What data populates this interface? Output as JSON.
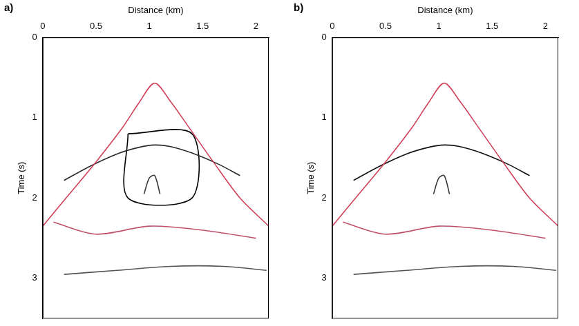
{
  "chart_data": [
    {
      "type": "line",
      "title": "a)",
      "x_label": "Distance (km)",
      "y_label": "Time (s)",
      "xlim": [
        0,
        2.12
      ],
      "xticks": [
        0,
        0.5,
        1,
        1.5,
        2
      ],
      "ylim": [
        0,
        3.5
      ],
      "yticks": [
        0,
        1,
        2,
        3
      ],
      "series": [
        {
          "color": "#d0405a",
          "x": [
            0,
            0.25,
            0.5,
            0.75,
            0.9,
            1.05,
            1.2,
            1.35,
            1.6,
            1.85,
            2.12
          ],
          "values": [
            2.35,
            1.95,
            1.55,
            1.12,
            0.82,
            0.57,
            0.8,
            1.08,
            1.55,
            2.0,
            2.35
          ]
        },
        {
          "color": "#2b2b2b",
          "x": [
            0.2,
            0.45,
            0.7,
            0.9,
            1.05,
            1.2,
            1.4,
            1.65,
            1.85
          ],
          "values": [
            1.78,
            1.6,
            1.45,
            1.37,
            1.34,
            1.36,
            1.44,
            1.58,
            1.72
          ]
        },
        {
          "color": "#3a3a3a",
          "x": [
            0.95,
            1.0,
            1.05,
            1.1
          ],
          "values": [
            1.95,
            1.75,
            1.72,
            1.95
          ]
        },
        {
          "color": "#c0506a",
          "x": [
            0.1,
            0.5,
            1.0,
            1.5,
            2.0
          ],
          "values": [
            2.3,
            2.45,
            2.35,
            2.4,
            2.5
          ]
        },
        {
          "color": "#555555",
          "x": [
            0.2,
            0.7,
            1.2,
            1.7,
            2.1
          ],
          "values": [
            2.95,
            2.9,
            2.85,
            2.85,
            2.9
          ]
        },
        {
          "color": "#000000",
          "x": [
            0.8,
            1.4,
            1.4,
            0.8,
            0.8
          ],
          "values": [
            1.2,
            1.2,
            2.0,
            2.0,
            1.2
          ]
        }
      ]
    },
    {
      "type": "line",
      "title": "b)",
      "x_label": "Distance (km)",
      "y_label": "Time (s)",
      "xlim": [
        0,
        2.12
      ],
      "xticks": [
        0,
        0.5,
        1,
        1.5,
        2
      ],
      "ylim": [
        0,
        3.5
      ],
      "yticks": [
        0,
        1,
        2,
        3
      ],
      "series": [
        {
          "color": "#d0405a",
          "x": [
            0,
            0.25,
            0.5,
            0.75,
            0.9,
            1.05,
            1.2,
            1.35,
            1.6,
            1.85,
            2.12
          ],
          "values": [
            2.35,
            1.95,
            1.55,
            1.12,
            0.82,
            0.57,
            0.8,
            1.08,
            1.55,
            2.0,
            2.35
          ]
        },
        {
          "color": "#111111",
          "x": [
            0.2,
            0.45,
            0.7,
            0.9,
            1.05,
            1.2,
            1.4,
            1.65,
            1.85
          ],
          "values": [
            1.78,
            1.6,
            1.45,
            1.37,
            1.34,
            1.36,
            1.44,
            1.58,
            1.72
          ]
        },
        {
          "color": "#3a3a3a",
          "x": [
            0.95,
            1.0,
            1.05,
            1.1
          ],
          "values": [
            1.95,
            1.75,
            1.72,
            1.95
          ]
        },
        {
          "color": "#c0506a",
          "x": [
            0.1,
            0.5,
            1.0,
            1.5,
            2.0
          ],
          "values": [
            2.3,
            2.45,
            2.35,
            2.4,
            2.5
          ]
        },
        {
          "color": "#555555",
          "x": [
            0.2,
            0.7,
            1.2,
            1.7,
            2.1
          ],
          "values": [
            2.95,
            2.9,
            2.85,
            2.85,
            2.9
          ]
        }
      ]
    }
  ]
}
